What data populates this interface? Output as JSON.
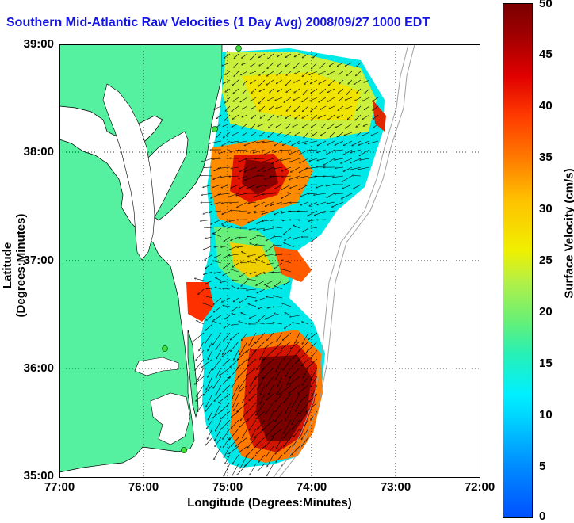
{
  "title": "Southern Mid-Atlantic Raw Velocities (1 Day Avg) 2008/09/27 1000 EDT",
  "axes": {
    "xlabel": "Longitude (Degrees:Minutes)",
    "ylabel": "Latitude (Degrees:Minutes)",
    "x_ticks": [
      "77:00",
      "76:00",
      "75:00",
      "74:00",
      "73:00",
      "72:00"
    ],
    "y_ticks": [
      "39:00",
      "38:00",
      "37:00",
      "36:00",
      "35:00"
    ],
    "x_range_deg_w": [
      77,
      72
    ],
    "y_range_deg_n": [
      35,
      39
    ]
  },
  "colorbar": {
    "label": "Surface Velocity (cm/s)",
    "ticks": [
      "50",
      "45",
      "40",
      "35",
      "30",
      "25",
      "20",
      "15",
      "10",
      "5",
      "0"
    ],
    "range": [
      0,
      50
    ],
    "colormap": "jet"
  },
  "colors": {
    "land": "#55f0a0",
    "water": "#ffffff",
    "title": "#1414e6",
    "grid": "#000000",
    "bathymetry": "#a0a0a0"
  },
  "chart_data": {
    "type": "heatmap",
    "grid_on": true,
    "description_units": "longitude degrees west, latitude degrees north, speed cm/s"
  }
}
